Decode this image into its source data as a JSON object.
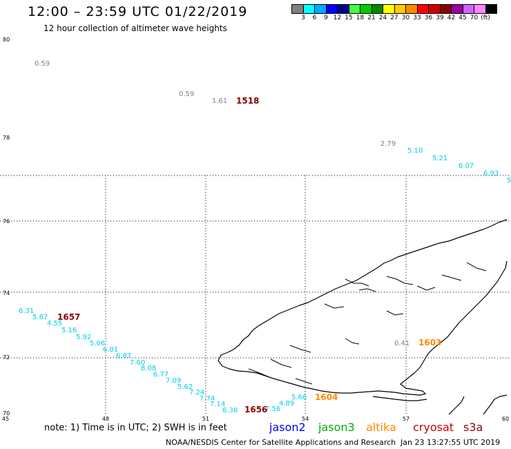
{
  "header": {
    "title": "12:00 – 23:59 UTC 01/22/2019",
    "subtitle": "12 hour collection of altimeter wave heights"
  },
  "colorbar": {
    "colors": [
      "#808080",
      "#00ffff",
      "#00aaff",
      "#0000ff",
      "#00008b",
      "#44ff44",
      "#00cc00",
      "#008800",
      "#ffff00",
      "#ffcc00",
      "#ff8800",
      "#ff0000",
      "#cc0000",
      "#8b0000",
      "#990099",
      "#cc66ff",
      "#ff88ff",
      "#000000"
    ],
    "labels": [
      "3",
      "6",
      "9",
      "12",
      "15",
      "18",
      "21",
      "24",
      "27",
      "30",
      "33",
      "36",
      "39",
      "42",
      "45",
      "70",
      "(ft)"
    ]
  },
  "axes": {
    "lat_ticks": [
      "80",
      "78",
      "76",
      "74",
      "72",
      "70"
    ],
    "lon_ticks": [
      "45",
      "48",
      "51",
      "54",
      "57",
      "60"
    ]
  },
  "swh_points": [
    {
      "v": "0.59",
      "c": "#808080"
    },
    {
      "v": "0.59",
      "c": "#808080"
    },
    {
      "v": "1.61",
      "c": "#808080"
    },
    {
      "v": "2.79",
      "c": "#808080"
    },
    {
      "v": "5.10",
      "c": "#00ccee"
    },
    {
      "v": "5.21",
      "c": "#00ccee"
    },
    {
      "v": "6.07",
      "c": "#00ccee"
    },
    {
      "v": "6.93",
      "c": "#00ccee"
    },
    {
      "v": "5",
      "c": "#00ccee"
    },
    {
      "v": "6.31",
      "c": "#00ccee"
    },
    {
      "v": "5.87",
      "c": "#00ccee"
    },
    {
      "v": "4.55",
      "c": "#00ccee"
    },
    {
      "v": "5.16",
      "c": "#00ccee"
    },
    {
      "v": "5.92",
      "c": "#00ccee"
    },
    {
      "v": "5.06",
      "c": "#00ccee"
    },
    {
      "v": "6.01",
      "c": "#00ccee"
    },
    {
      "v": "6.87",
      "c": "#00ccee"
    },
    {
      "v": "7.60",
      "c": "#00ccee"
    },
    {
      "v": "8.08",
      "c": "#00ccee"
    },
    {
      "v": "6.77",
      "c": "#00ccee"
    },
    {
      "v": "7.09",
      "c": "#00ccee"
    },
    {
      "v": "5.62",
      "c": "#00ccee"
    },
    {
      "v": "7.24",
      "c": "#00ccee"
    },
    {
      "v": "7.74",
      "c": "#00ccee"
    },
    {
      "v": "7.14",
      "c": "#00ccee"
    },
    {
      "v": "6.38",
      "c": "#00ccee"
    },
    {
      "v": "7.56",
      "c": "#00ccee"
    },
    {
      "v": "4.89",
      "c": "#00ccee"
    },
    {
      "v": "5.66",
      "c": "#00ccee"
    },
    {
      "v": "0.41",
      "c": "#808080"
    }
  ],
  "time_labels": [
    {
      "t": "1518",
      "c": "#8b0000"
    },
    {
      "t": "1657",
      "c": "#8b0000"
    },
    {
      "t": "1656",
      "c": "#8b0000"
    },
    {
      "t": "1603",
      "c": "#ff8800"
    },
    {
      "t": "1604",
      "c": "#ff8800"
    }
  ],
  "footer": {
    "note": "note:  1) Time is in UTC;  2) SWH is in feet",
    "legend": [
      {
        "name": "jason2",
        "color": "#0000ff"
      },
      {
        "name": "jason3",
        "color": "#00aa00"
      },
      {
        "name": "altika",
        "color": "#ff8800"
      },
      {
        "name": "cryosat",
        "color": "#cc0000"
      },
      {
        "name": "s3a",
        "color": "#8b0000"
      }
    ],
    "credit": "NOAA/NESDIS Center for Satellite Applications and Research",
    "timestamp": "Jan 23 13:27:55 UTC 2019"
  }
}
